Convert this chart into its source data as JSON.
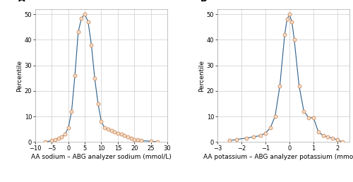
{
  "panel_A": {
    "label": "A",
    "xlabel": "AA sodium – ABG analyzer sodium (mmol/L)",
    "ylabel": "Percentile",
    "xlim": [
      -10,
      30
    ],
    "ylim": [
      0,
      52
    ],
    "xticks": [
      -10,
      -5,
      0,
      5,
      10,
      15,
      20,
      25,
      30
    ],
    "yticks": [
      0,
      10,
      20,
      30,
      40,
      50
    ],
    "x_data": [
      -7,
      -5,
      -4,
      -3,
      -2,
      -1,
      0,
      1,
      2,
      3,
      4,
      5,
      6,
      7,
      8,
      9,
      10,
      11,
      12,
      13,
      14,
      15,
      16,
      17,
      18,
      19,
      20,
      21,
      22,
      25,
      27
    ],
    "y_data": [
      0.0,
      0.5,
      1.0,
      1.5,
      2.0,
      3.0,
      5.5,
      12.0,
      26.0,
      43.0,
      48.5,
      50.0,
      47.0,
      38.0,
      25.0,
      15.0,
      8.0,
      5.5,
      5.0,
      4.5,
      4.0,
      3.5,
      3.0,
      2.5,
      2.0,
      1.5,
      1.0,
      0.8,
      0.5,
      0.3,
      0.0
    ]
  },
  "panel_B": {
    "label": "B",
    "xlabel": "AA potassium – ABG analyzer potassium (mmol/L)",
    "ylabel": "Percentile",
    "xlim": [
      -3,
      2.5
    ],
    "ylim": [
      0,
      52
    ],
    "xticks": [
      -3,
      -2,
      -1,
      0,
      1,
      2
    ],
    "yticks": [
      0,
      10,
      20,
      30,
      40,
      50
    ],
    "x_data": [
      -2.5,
      -2.2,
      -1.8,
      -1.5,
      -1.2,
      -1.0,
      -0.8,
      -0.6,
      -0.4,
      -0.2,
      -0.1,
      0.0,
      0.1,
      0.2,
      0.4,
      0.6,
      0.8,
      1.0,
      1.2,
      1.4,
      1.6,
      1.8,
      2.0,
      2.2
    ],
    "y_data": [
      0.5,
      1.0,
      1.5,
      2.0,
      2.5,
      3.5,
      5.5,
      10.0,
      22.0,
      42.0,
      48.0,
      50.0,
      47.0,
      40.0,
      22.0,
      12.0,
      9.5,
      9.5,
      4.0,
      2.5,
      2.0,
      1.5,
      0.8,
      0.0
    ]
  },
  "line_color": "#2c5f8a",
  "marker_edge_color": "#d4956a",
  "marker_face_color": "#f5e0cc",
  "bg_color": "#ffffff",
  "plot_bg": "#ffffff",
  "grid_color": "#cccccc",
  "axis_fontsize": 6.5,
  "tick_fontsize": 6.0,
  "label_fontsize": 9,
  "marker_size": 3.5,
  "line_width": 0.8
}
